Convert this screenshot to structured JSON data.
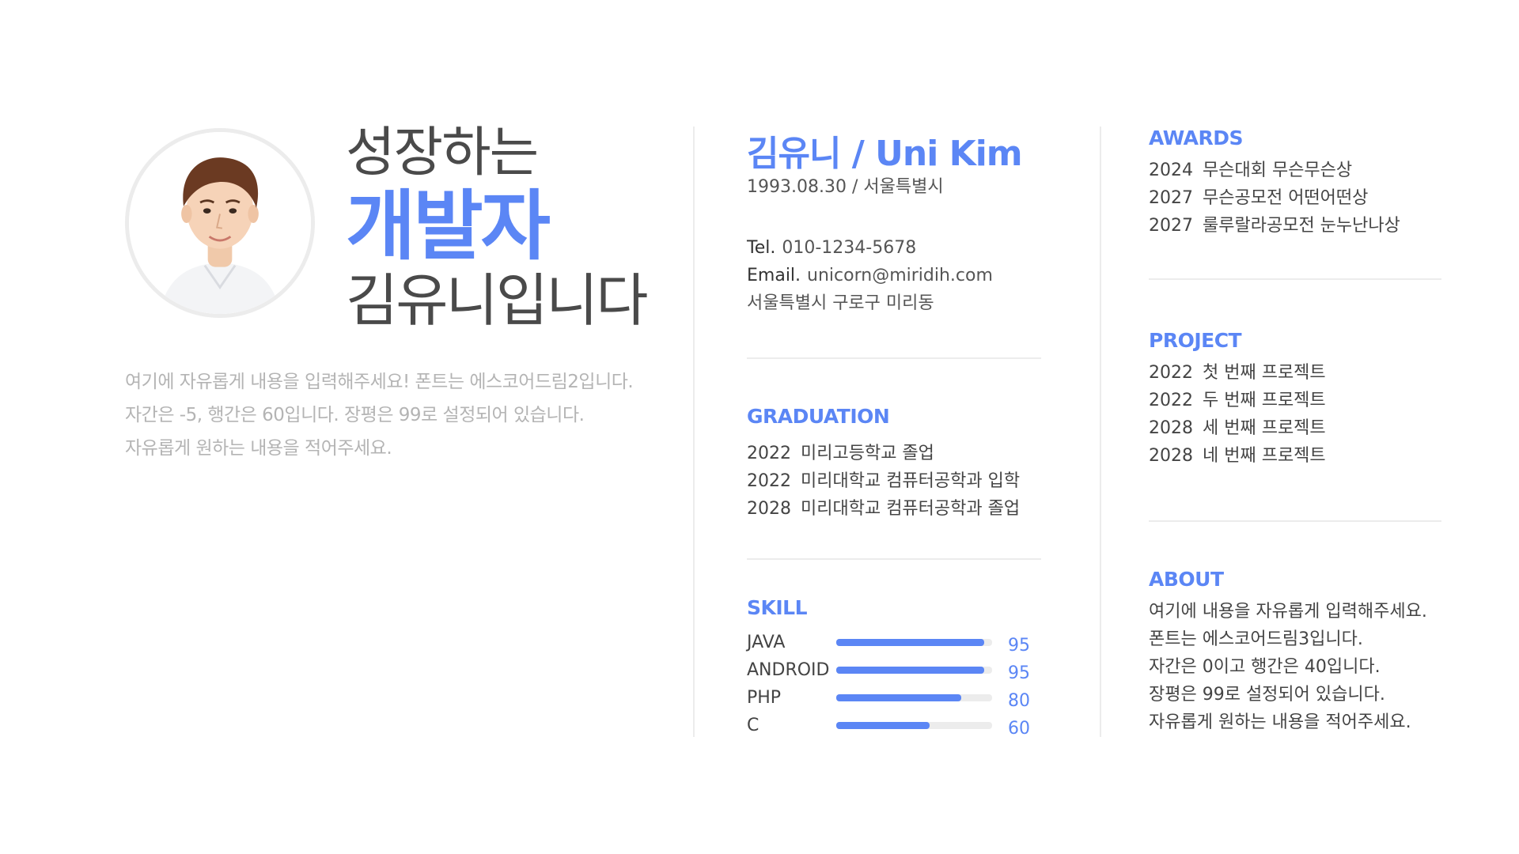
{
  "profile": {
    "photo_alt": "profile photo",
    "headline_1": "성장하는",
    "headline_2": "개발자",
    "headline_3": "김유니입니다",
    "intro": [
      "여기에 자유롭게 내용을 입력해주세요! 폰트는 에스코어드림2입니다.",
      "자간은 -5, 행간은 60입니다. 장평은 99로 설정되어 있습니다.",
      "자유롭게 원하는 내용을 적어주세요."
    ]
  },
  "info": {
    "name": "김유니 / Uni Kim",
    "birth": "1993.08.30 / 서울특별시",
    "tel_label": "Tel.",
    "tel": "010-1234-5678",
    "email_label": "Email.",
    "email": "unicorn@miridih.com",
    "address": "서울특별시 구로구 미리동"
  },
  "graduation": {
    "title": "GRADUATION",
    "items": [
      {
        "year": "2022",
        "text": "미리고등학교 졸업"
      },
      {
        "year": "2022",
        "text": "미리대학교 컴퓨터공학과 입학"
      },
      {
        "year": "2028",
        "text": "미리대학교 컴퓨터공학과 졸업"
      }
    ]
  },
  "skill": {
    "title": "SKILL",
    "items": [
      {
        "name": "JAVA",
        "value": 95
      },
      {
        "name": "ANDROID",
        "value": 95
      },
      {
        "name": "PHP",
        "value": 80
      },
      {
        "name": "C",
        "value": 60
      }
    ]
  },
  "awards": {
    "title": "AWARDS",
    "items": [
      {
        "year": "2024",
        "text": "무슨대회 무슨무슨상"
      },
      {
        "year": "2027",
        "text": "무슨공모전 어떤어떤상"
      },
      {
        "year": "2027",
        "text": "룰루랄라공모전 눈누난나상"
      }
    ]
  },
  "project": {
    "title": "PROJECT",
    "items": [
      {
        "year": "2022",
        "text": "첫 번째 프로젝트"
      },
      {
        "year": "2022",
        "text": "두 번째 프로젝트"
      },
      {
        "year": "2028",
        "text": "세 번째 프로젝트"
      },
      {
        "year": "2028",
        "text": "네 번째 프로젝트"
      }
    ]
  },
  "about": {
    "title": "ABOUT",
    "lines": [
      "여기에 내용을 자유롭게 입력해주세요.",
      "폰트는 에스코어드림3입니다.",
      "자간은 0이고 행간은 40입니다.",
      "장평은 99로 설정되어 있습니다.",
      "자유롭게 원하는 내용을 적어주세요."
    ]
  },
  "colors": {
    "accent": "#5b86f5",
    "bar_track": "#ececec",
    "divider": "#ececec",
    "muted_text": "#b4b4b4"
  }
}
